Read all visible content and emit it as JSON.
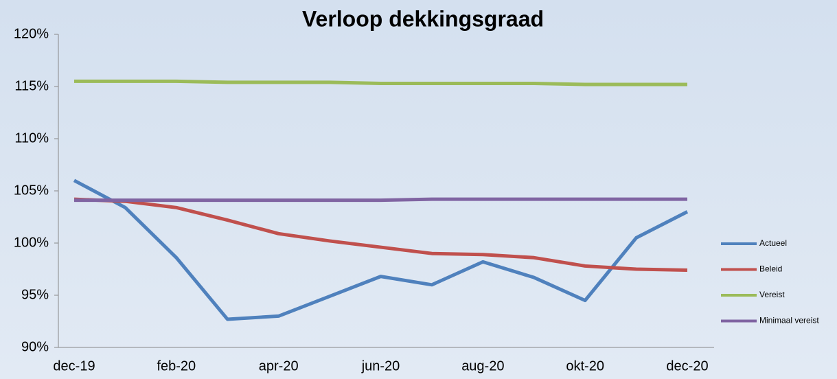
{
  "chart_data": {
    "type": "line",
    "title": "Verloop dekkingsgraad",
    "categories": [
      "dec-19",
      null,
      "feb-20",
      null,
      "apr-20",
      null,
      "jun-20",
      null,
      "aug-20",
      null,
      "okt-20",
      null,
      "dec-20"
    ],
    "series": [
      {
        "name": "Actueel",
        "color": "#4f81bd",
        "values": [
          106.0,
          103.4,
          98.6,
          92.7,
          93.0,
          94.9,
          96.8,
          96.0,
          98.2,
          96.7,
          94.5,
          100.5,
          103.0
        ]
      },
      {
        "name": "Beleid",
        "color": "#c0504d",
        "values": [
          104.2,
          104.0,
          103.4,
          102.2,
          100.9,
          100.2,
          99.6,
          99.0,
          98.9,
          98.6,
          97.8,
          97.5,
          97.4
        ]
      },
      {
        "name": "Vereist",
        "color": "#9bbb59",
        "values": [
          115.5,
          115.5,
          115.5,
          115.4,
          115.4,
          115.4,
          115.3,
          115.3,
          115.3,
          115.3,
          115.2,
          115.2,
          115.2
        ]
      },
      {
        "name": "Minimaal vereist",
        "color": "#8064a2",
        "values": [
          104.1,
          104.1,
          104.1,
          104.1,
          104.1,
          104.1,
          104.1,
          104.2,
          104.2,
          104.2,
          104.2,
          104.2,
          104.2
        ]
      }
    ],
    "ylim": [
      90,
      120
    ],
    "yticks": [
      {
        "value": 90,
        "label": "90%"
      },
      {
        "value": 95,
        "label": "95%"
      },
      {
        "value": 100,
        "label": "100%"
      },
      {
        "value": 105,
        "label": "105%"
      },
      {
        "value": 110,
        "label": "110%"
      },
      {
        "value": 115,
        "label": "115%"
      },
      {
        "value": 120,
        "label": "120%"
      }
    ],
    "legend": "right"
  }
}
